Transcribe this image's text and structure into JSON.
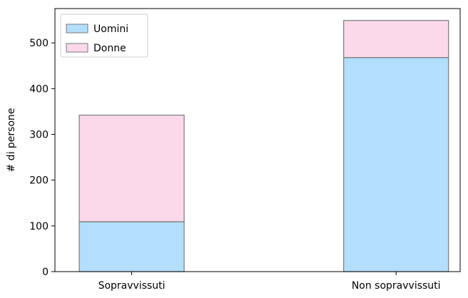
{
  "chart_data": {
    "type": "bar",
    "stacked": true,
    "categories": [
      "Sopravvissuti",
      "Non sopravvissuti"
    ],
    "series": [
      {
        "name": "Uomini",
        "values": [
          109,
          468
        ],
        "color": "#b3defc"
      },
      {
        "name": "Donne",
        "values": [
          233,
          81
        ],
        "color": "#fcd9ea"
      }
    ],
    "title": "",
    "xlabel": "",
    "ylabel": "# di persone",
    "ylim": [
      0,
      575
    ],
    "yticks": [
      0,
      100,
      200,
      300,
      400,
      500
    ],
    "grid": false,
    "legend_position": "top-left",
    "bar_edge_color": "#7a7a7a"
  }
}
